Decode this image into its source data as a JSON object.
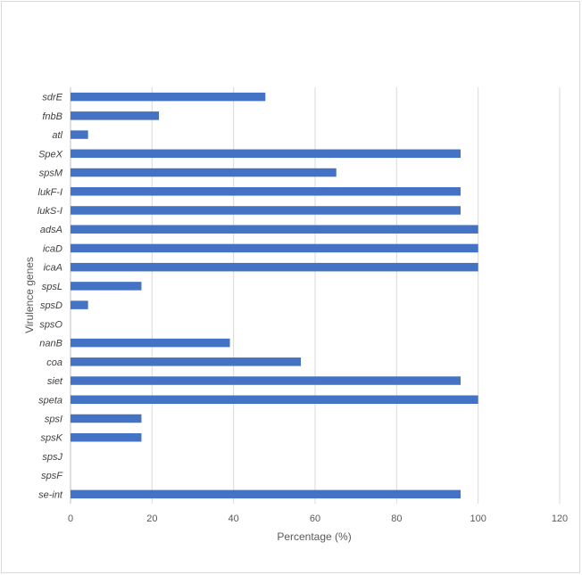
{
  "chart_data": {
    "type": "bar",
    "orientation": "horizontal",
    "title": "",
    "xlabel": "Percentage (%)",
    "ylabel": "Virulence genes",
    "xlim": [
      0,
      120
    ],
    "xticks": [
      0,
      20,
      40,
      60,
      80,
      100,
      120
    ],
    "grid": "vertical",
    "legend": "none",
    "bar_color": "#4472c4",
    "categories": [
      "sdrE",
      "fnbB",
      "atl",
      "SpeX",
      "spsM",
      "lukF-I",
      "lukS-I",
      "adsA",
      "icaD",
      "icaA",
      "spsL",
      "spsD",
      "spsO",
      "nanB",
      "coa",
      "siet",
      "speta",
      "spsI",
      "spsK",
      "spsJ",
      "spsF",
      "se-int"
    ],
    "values": [
      47.8,
      21.7,
      4.3,
      95.7,
      65.2,
      95.7,
      95.7,
      100,
      100,
      100,
      17.4,
      4.3,
      0,
      39.1,
      56.5,
      95.7,
      100,
      17.4,
      17.4,
      0,
      0,
      95.7
    ]
  }
}
